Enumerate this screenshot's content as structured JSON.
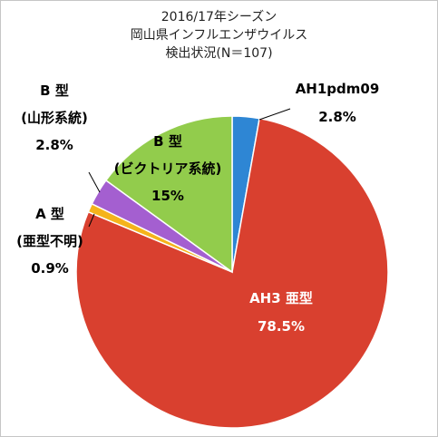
{
  "chart_data": {
    "type": "pie",
    "title": [
      "2016/17年シーズン",
      "岡山県インフルエンザウイルス",
      "検出状況(N＝107)"
    ],
    "slices": [
      {
        "name": "AH1pdm09",
        "value": 2.8,
        "label_lines": [
          "AH1pdm09",
          "2.8%"
        ],
        "color": "#2e86d4",
        "label_color": "#000000"
      },
      {
        "name": "AH3 亜型",
        "value": 78.5,
        "label_lines": [
          "AH3 亜型",
          "78.5%"
        ],
        "color": "#d9402f",
        "label_color": "#ffffff"
      },
      {
        "name": "A 型（亜型不明）",
        "value": 0.9,
        "label_lines": [
          "A 型",
          "(亜型不明)",
          "0.9%"
        ],
        "color": "#f5b31b",
        "label_color": "#000000"
      },
      {
        "name": "B 型（山形系統）",
        "value": 2.8,
        "label_lines": [
          "B 型",
          "(山形系統)",
          "2.8%"
        ],
        "color": "#a45fd0",
        "label_color": "#000000"
      },
      {
        "name": "B 型（ビクトリア系統）",
        "value": 15,
        "label_lines": [
          "B 型",
          "(ビクトリア系統)",
          "15%"
        ],
        "color": "#92cc4c",
        "label_color": "#000000"
      }
    ]
  }
}
